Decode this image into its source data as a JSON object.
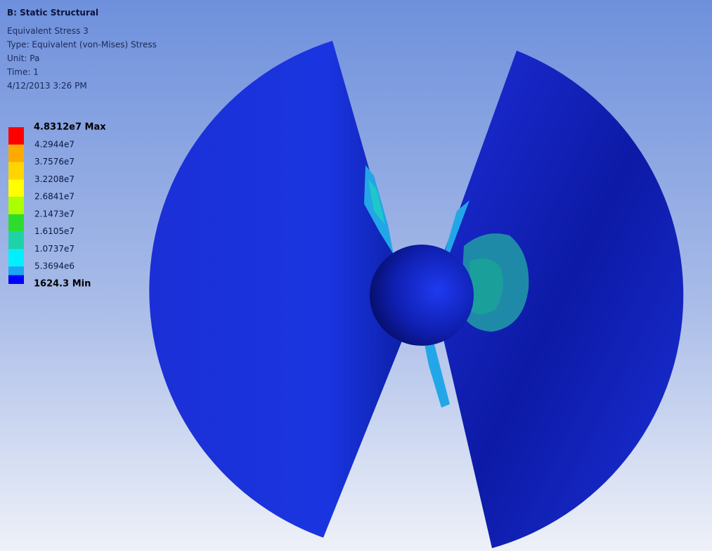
{
  "header": {
    "title": "B: Static Structural",
    "lines": [
      "Equivalent Stress 3",
      "Type: Equivalent (von-Mises) Stress",
      "Unit: Pa",
      "Time: 1",
      "4/12/2013 3:26 PM"
    ]
  },
  "legend": {
    "labels": [
      "4.8312e7 Max",
      "4.2944e7",
      "3.7576e7",
      "3.2208e7",
      "2.6841e7",
      "2.1473e7",
      "1.6105e7",
      "1.0737e7",
      "5.3694e6",
      "1624.3 Min"
    ],
    "band_colors": [
      "#ff0000",
      "#ffaa00",
      "#ffd500",
      "#ffff00",
      "#aaff00",
      "#2edc2e",
      "#1fd2a8",
      "#00f0ff",
      "#1aa6f0",
      "#0000ff"
    ]
  }
}
